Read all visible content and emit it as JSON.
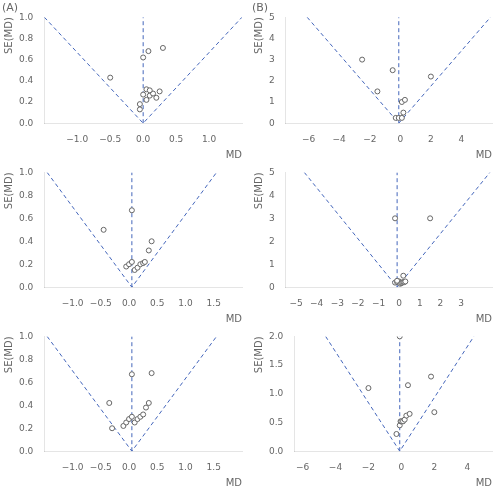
{
  "chart_data": [
    {
      "type": "scatter",
      "title": "(A)",
      "xlabel": "MD",
      "ylabel": "SE(MD)",
      "xlim": [
        -1.5,
        1.5
      ],
      "ylim": [
        1.0,
        0
      ],
      "xticks": [
        {
          "value": -1,
          "label": "−1.0"
        },
        {
          "value": -0.5,
          "label": "−0.5"
        },
        {
          "value": 0,
          "label": "0.0"
        },
        0.5,
        {
          "value": 1,
          "label": "1.0"
        }
      ],
      "yticks": [
        {
          "value": 0,
          "label": "0.0"
        },
        0.2,
        0.4,
        0.6,
        0.8,
        {
          "value": 1.0,
          "label": "1.0"
        }
      ],
      "grid": false,
      "series": [
        {
          "type": "line",
          "color": "#4466bb",
          "line_style": "dashed",
          "x": [
            -1.5,
            0.0,
            1.5
          ],
          "values": [
            1.0,
            0,
            1.0
          ]
        },
        {
          "type": "line",
          "color": "#4466bb",
          "line_style": "dashed",
          "x": [
            0.0,
            0.0
          ],
          "values": [
            0,
            1.0
          ]
        },
        {
          "type": "scatter",
          "color": "#666666",
          "marker": "circle",
          "x": [
            -0.5,
            -0.05,
            -0.05,
            0.0,
            0.05,
            0.1,
            0.15,
            0.2,
            0.25,
            0.05,
            0.1,
            0.0,
            0.08,
            0.3
          ],
          "values": [
            0.43,
            0.13,
            0.18,
            0.27,
            0.22,
            0.26,
            0.28,
            0.24,
            0.3,
            0.32,
            0.31,
            0.62,
            0.68,
            0.71
          ]
        }
      ]
    },
    {
      "type": "scatter",
      "title": "(B)",
      "xlabel": "MD",
      "ylabel": "SE(MD)",
      "xlim": [
        -7.5,
        6.0
      ],
      "ylim": [
        5.0,
        0
      ],
      "xticks": [
        {
          "value": -6,
          "label": "−6"
        },
        {
          "value": -4,
          "label": "−4"
        },
        {
          "value": -2,
          "label": "−2"
        },
        0,
        2,
        4
      ],
      "yticks": [
        0,
        1,
        2,
        3,
        4,
        5
      ],
      "grid": false,
      "series": [
        {
          "type": "line",
          "color": "#4466bb",
          "line_style": "dashed",
          "x": [
            -6.1,
            -0.1,
            5.9
          ],
          "values": [
            5.0,
            0,
            5.0
          ]
        },
        {
          "type": "line",
          "color": "#4466bb",
          "line_style": "dashed",
          "x": [
            -0.1,
            -0.1
          ],
          "values": [
            0,
            5.0
          ]
        },
        {
          "type": "scatter",
          "color": "#666666",
          "marker": "circle",
          "x": [
            -0.3,
            -0.1,
            0.1,
            0.2,
            0.1,
            0.3,
            -1.5,
            2.0,
            -0.5,
            -2.5
          ],
          "values": [
            0.25,
            0.25,
            0.25,
            0.5,
            1.0,
            1.1,
            1.5,
            2.2,
            2.5,
            3.0
          ]
        }
      ]
    },
    {
      "type": "scatter",
      "xlabel": "MD",
      "ylabel": "SE(MD)",
      "xlim": [
        -1.5,
        2.0
      ],
      "ylim": [
        1.0,
        0
      ],
      "xticks": [
        {
          "value": -1,
          "label": "−1.0"
        },
        {
          "value": -0.5,
          "label": "−0.5"
        },
        {
          "value": 0,
          "label": "0.0"
        },
        0.5,
        {
          "value": 1,
          "label": "1.0"
        },
        1.5
      ],
      "yticks": [
        {
          "value": 0,
          "label": "0.0"
        },
        0.2,
        0.4,
        0.6,
        0.8,
        {
          "value": 1.0,
          "label": "1.0"
        }
      ],
      "grid": false,
      "series": [
        {
          "type": "line",
          "color": "#4466bb",
          "line_style": "dashed",
          "x": [
            -1.45,
            0.05,
            1.55
          ],
          "values": [
            1.0,
            0,
            1.0
          ]
        },
        {
          "type": "line",
          "color": "#4466bb",
          "line_style": "dashed",
          "x": [
            0.05,
            0.05
          ],
          "values": [
            0,
            1.0
          ]
        },
        {
          "type": "scatter",
          "color": "#666666",
          "marker": "circle",
          "x": [
            -0.45,
            -0.05,
            0.0,
            0.05,
            0.1,
            0.15,
            0.2,
            0.25,
            0.28,
            0.35,
            0.4,
            0.05
          ],
          "values": [
            0.5,
            0.18,
            0.2,
            0.22,
            0.15,
            0.17,
            0.2,
            0.21,
            0.22,
            0.32,
            0.4,
            0.67
          ]
        }
      ]
    },
    {
      "type": "scatter",
      "xlabel": "MD",
      "ylabel": "SE(MD)",
      "xlim": [
        -5.5,
        4.5
      ],
      "ylim": [
        5.0,
        0
      ],
      "xticks": [
        {
          "value": -5,
          "label": "−5"
        },
        {
          "value": -4,
          "label": "−4"
        },
        {
          "value": -3,
          "label": "−3"
        },
        {
          "value": -2,
          "label": "−2"
        },
        {
          "value": -1,
          "label": "−1"
        },
        0,
        1,
        2,
        3
      ],
      "yticks": [
        0,
        1,
        2,
        3,
        4,
        5
      ],
      "grid": false,
      "series": [
        {
          "type": "line",
          "color": "#4466bb",
          "line_style": "dashed",
          "x": [
            -4.6,
            -0.1,
            4.4
          ],
          "values": [
            5.0,
            0,
            5.0
          ]
        },
        {
          "type": "line",
          "color": "#4466bb",
          "line_style": "dashed",
          "x": [
            -0.1,
            -0.1
          ],
          "values": [
            0,
            5.0
          ]
        },
        {
          "type": "scatter",
          "color": "#666666",
          "marker": "circle",
          "x": [
            -0.2,
            -0.1,
            0.0,
            0.05,
            0.1,
            0.15,
            0.2,
            0.25,
            0.3,
            0.2,
            -0.1,
            1.5,
            -0.2
          ],
          "values": [
            0.2,
            0.22,
            0.25,
            0.15,
            0.18,
            0.2,
            0.22,
            0.22,
            0.25,
            0.5,
            0.28,
            3.0,
            3.0
          ]
        }
      ]
    },
    {
      "type": "scatter",
      "xlabel": "MD",
      "ylabel": "SE(MD)",
      "xlim": [
        -1.5,
        2.0
      ],
      "ylim": [
        1.0,
        0
      ],
      "xticks": [
        {
          "value": -1,
          "label": "−1.0"
        },
        {
          "value": -0.5,
          "label": "−0.5"
        },
        {
          "value": 0,
          "label": "0.0"
        },
        0.5,
        {
          "value": 1,
          "label": "1.0"
        },
        1.5
      ],
      "yticks": [
        {
          "value": 0,
          "label": "0.0"
        },
        0.2,
        0.4,
        0.6,
        0.8,
        {
          "value": 1.0,
          "label": "1.0"
        }
      ],
      "grid": false,
      "series": [
        {
          "type": "line",
          "color": "#4466bb",
          "line_style": "dashed",
          "x": [
            -1.45,
            0.05,
            1.55
          ],
          "values": [
            1.0,
            0,
            1.0
          ]
        },
        {
          "type": "line",
          "color": "#4466bb",
          "line_style": "dashed",
          "x": [
            0.05,
            0.05
          ],
          "values": [
            0,
            1.0
          ]
        },
        {
          "type": "scatter",
          "color": "#666666",
          "marker": "circle",
          "x": [
            -0.3,
            -0.1,
            -0.05,
            0.0,
            0.05,
            0.1,
            0.15,
            0.2,
            0.25,
            0.3,
            0.35,
            -0.35,
            0.05,
            0.4
          ],
          "values": [
            0.2,
            0.22,
            0.25,
            0.28,
            0.3,
            0.25,
            0.28,
            0.3,
            0.32,
            0.38,
            0.42,
            0.42,
            0.67,
            0.68
          ]
        }
      ]
    },
    {
      "type": "scatter",
      "xlabel": "MD",
      "ylabel": "SE(MD)",
      "xlim": [
        -6.5,
        5.5
      ],
      "ylim": [
        2.0,
        0
      ],
      "xticks": [
        {
          "value": -6,
          "label": "−6"
        },
        {
          "value": -4,
          "label": "−4"
        },
        {
          "value": -2,
          "label": "−2"
        },
        0,
        2,
        4
      ],
      "yticks": [
        {
          "value": 0,
          "label": "0.0"
        },
        0.5,
        {
          "value": 1.0,
          "label": "1.0"
        },
        1.5,
        {
          "value": 2.0,
          "label": "2.0"
        }
      ],
      "grid": false,
      "series": [
        {
          "type": "line",
          "color": "#4466bb",
          "line_style": "dashed",
          "x": [
            -4.6,
            -0.1,
            4.4
          ],
          "values": [
            2.0,
            0,
            2.0
          ]
        },
        {
          "type": "line",
          "color": "#4466bb",
          "line_style": "dashed",
          "x": [
            -0.1,
            -0.1
          ],
          "values": [
            0,
            2.0
          ]
        },
        {
          "type": "scatter",
          "color": "#666666",
          "marker": "circle",
          "x": [
            -0.3,
            -0.1,
            -0.05,
            0.0,
            0.1,
            0.2,
            0.3,
            0.5,
            2.0,
            -2.0,
            0.4,
            1.8,
            -0.1
          ],
          "values": [
            0.3,
            0.45,
            0.52,
            0.52,
            0.52,
            0.55,
            0.62,
            0.65,
            0.68,
            1.1,
            1.15,
            1.3,
            2.0
          ]
        }
      ]
    }
  ]
}
